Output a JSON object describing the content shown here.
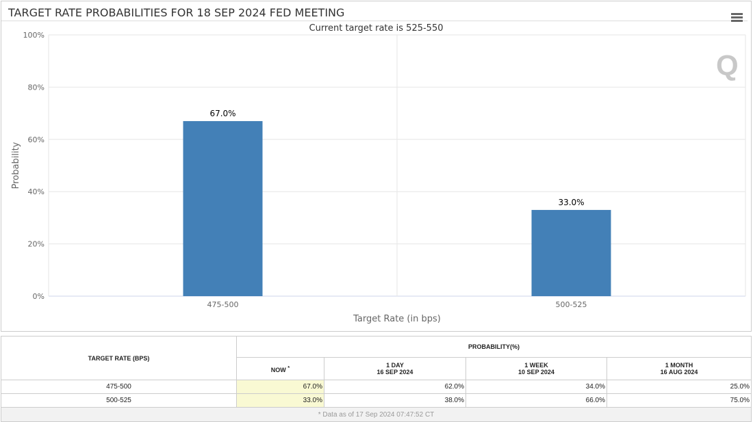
{
  "chart_data": {
    "type": "bar",
    "title": "TARGET RATE PROBABILITIES FOR 18 SEP 2024 FED MEETING",
    "subtitle": "Current target rate is 525-550",
    "categories": [
      "475-500",
      "500-525"
    ],
    "values": [
      67.0,
      33.0
    ],
    "data_labels": [
      "67.0%",
      "33.0%"
    ],
    "xlabel": "Target Rate (in bps)",
    "ylabel": "Probability",
    "ylim": [
      0,
      100
    ],
    "yticks": [
      "0%",
      "20%",
      "40%",
      "60%",
      "80%",
      "100%"
    ],
    "grid": true,
    "bar_color": "#4380b7"
  },
  "menu_icon": "hamburger-menu-icon",
  "logo": "Q",
  "table": {
    "header_rate": "TARGET RATE (BPS)",
    "header_prob": "PROBABILITY(%)",
    "cols": [
      {
        "l1": "NOW",
        "l2": "",
        "sup": "*"
      },
      {
        "l1": "1 DAY",
        "l2": "16 SEP 2024"
      },
      {
        "l1": "1 WEEK",
        "l2": "10 SEP 2024"
      },
      {
        "l1": "1 MONTH",
        "l2": "16 AUG 2024"
      }
    ],
    "rows": [
      {
        "rate": "475-500",
        "values": [
          "67.0%",
          "62.0%",
          "34.0%",
          "25.0%"
        ]
      },
      {
        "rate": "500-525",
        "values": [
          "33.0%",
          "38.0%",
          "66.0%",
          "75.0%"
        ]
      }
    ],
    "footnote": "* Data as of 17 Sep 2024 07:47:52 CT"
  }
}
